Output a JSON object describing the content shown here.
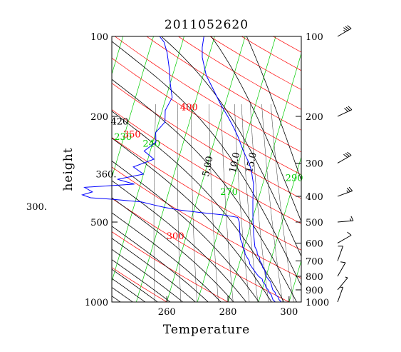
{
  "chart_data": {
    "type": "line",
    "title": "2011052620",
    "xlabel": "Temperature",
    "ylabel": "height",
    "xlim": [
      242,
      304
    ],
    "ylim": [
      1000,
      100
    ],
    "y_scale": "log",
    "x_ticks": [
      "260",
      "280",
      "300"
    ],
    "x_tick_values": [
      260,
      280,
      300
    ],
    "y_ticks": [
      "100",
      "200",
      "500",
      "1000"
    ],
    "y_tick_values": [
      100,
      200,
      500,
      1000
    ],
    "right_axis_ticks": [
      "100",
      "200",
      "300",
      "400",
      "500",
      "600",
      "700",
      "800",
      "900",
      "1000"
    ],
    "right_axis_tick_values": [
      100,
      200,
      300,
      400,
      500,
      600,
      700,
      800,
      900,
      1000
    ],
    "colors": {
      "temperature": "#0000ff",
      "dewpoint": "#0000ff",
      "isotherm": "#00cc00",
      "dry_adiabat": "#ff0000",
      "moist_adiabat": "#000000",
      "mixing_ratio": "#000000",
      "frame": "#000000"
    },
    "isotherm_labels": [
      {
        "text": "230",
        "T": 230,
        "p": 245
      },
      {
        "text": "240",
        "T": 240,
        "p": 260
      },
      {
        "text": "270",
        "T": 270,
        "p": 395
      },
      {
        "text": "290",
        "T": 290,
        "p": 350
      }
    ],
    "dry_adiabat_labels": [
      {
        "text": "300",
        "theta": 300,
        "p": 580
      },
      {
        "text": "350",
        "theta": 350,
        "p": 240
      },
      {
        "text": "400",
        "theta": 400,
        "p": 190
      }
    ],
    "moist_adiabat_labels": [
      {
        "text": "300.",
        "thetae": 300,
        "p": 450
      },
      {
        "text": "360.",
        "thetae": 360,
        "p": 340
      },
      {
        "text": "420",
        "thetae": 420,
        "p": 215
      }
    ],
    "mixing_ratio_labels": [
      {
        "text": "5.00",
        "w": 5,
        "p": 310
      },
      {
        "text": "10.0",
        "w": 10,
        "p": 300
      },
      {
        "text": "15.0",
        "w": 15,
        "p": 300
      }
    ],
    "temperature_profile": [
      {
        "p": 1000,
        "T": 297.5
      },
      {
        "p": 980,
        "T": 296.5
      },
      {
        "p": 960,
        "T": 296
      },
      {
        "p": 940,
        "T": 295
      },
      {
        "p": 920,
        "T": 294.5
      },
      {
        "p": 900,
        "T": 293.5
      },
      {
        "p": 880,
        "T": 293
      },
      {
        "p": 860,
        "T": 292.5
      },
      {
        "p": 840,
        "T": 292
      },
      {
        "p": 820,
        "T": 291
      },
      {
        "p": 800,
        "T": 290
      },
      {
        "p": 780,
        "T": 289.5
      },
      {
        "p": 760,
        "T": 289
      },
      {
        "p": 740,
        "T": 288
      },
      {
        "p": 720,
        "T": 287.5
      },
      {
        "p": 700,
        "T": 286.5
      },
      {
        "p": 680,
        "T": 286
      },
      {
        "p": 660,
        "T": 285
      },
      {
        "p": 640,
        "T": 284.5
      },
      {
        "p": 620,
        "T": 283.5
      },
      {
        "p": 600,
        "T": 283
      },
      {
        "p": 580,
        "T": 282.5
      },
      {
        "p": 560,
        "T": 282
      },
      {
        "p": 540,
        "T": 281.5
      },
      {
        "p": 520,
        "T": 281
      },
      {
        "p": 500,
        "T": 280.5
      },
      {
        "p": 480,
        "T": 280
      },
      {
        "p": 460,
        "T": 279.5
      },
      {
        "p": 440,
        "T": 279
      },
      {
        "p": 420,
        "T": 278.5
      },
      {
        "p": 400,
        "T": 278
      },
      {
        "p": 380,
        "T": 277.5
      },
      {
        "p": 360,
        "T": 277
      },
      {
        "p": 340,
        "T": 276
      },
      {
        "p": 320,
        "T": 275
      },
      {
        "p": 300,
        "T": 273.5
      },
      {
        "p": 280,
        "T": 271.5
      },
      {
        "p": 260,
        "T": 269.5
      },
      {
        "p": 240,
        "T": 267.5
      },
      {
        "p": 220,
        "T": 265
      },
      {
        "p": 200,
        "T": 262
      },
      {
        "p": 180,
        "T": 258.5
      },
      {
        "p": 160,
        "T": 255
      },
      {
        "p": 140,
        "T": 251
      },
      {
        "p": 120,
        "T": 248
      },
      {
        "p": 110,
        "T": 247
      },
      {
        "p": 100,
        "T": 246.5
      }
    ],
    "dewpoint_profile": [
      {
        "p": 1000,
        "T": 295.5
      },
      {
        "p": 980,
        "T": 294.5
      },
      {
        "p": 960,
        "T": 294
      },
      {
        "p": 940,
        "T": 293.5
      },
      {
        "p": 920,
        "T": 292.5
      },
      {
        "p": 900,
        "T": 292
      },
      {
        "p": 880,
        "T": 291
      },
      {
        "p": 860,
        "T": 290.5
      },
      {
        "p": 840,
        "T": 289.5
      },
      {
        "p": 820,
        "T": 289
      },
      {
        "p": 800,
        "T": 287.5
      },
      {
        "p": 780,
        "T": 286.5
      },
      {
        "p": 760,
        "T": 285.5
      },
      {
        "p": 740,
        "T": 284.5
      },
      {
        "p": 720,
        "T": 283.5
      },
      {
        "p": 700,
        "T": 283
      },
      {
        "p": 680,
        "T": 282
      },
      {
        "p": 660,
        "T": 281
      },
      {
        "p": 640,
        "T": 280.5
      },
      {
        "p": 620,
        "T": 279.5
      },
      {
        "p": 600,
        "T": 279
      },
      {
        "p": 580,
        "T": 278
      },
      {
        "p": 560,
        "T": 277.5
      },
      {
        "p": 540,
        "T": 277
      },
      {
        "p": 520,
        "T": 276.5
      },
      {
        "p": 500,
        "T": 276
      },
      {
        "p": 480,
        "T": 275
      },
      {
        "p": 470,
        "T": 270
      },
      {
        "p": 460,
        "T": 262
      },
      {
        "p": 450,
        "T": 255
      },
      {
        "p": 440,
        "T": 250
      },
      {
        "p": 430,
        "T": 246
      },
      {
        "p": 420,
        "T": 242
      },
      {
        "p": 410,
        "T": 232
      },
      {
        "p": 405,
        "T": 225
      },
      {
        "p": 395,
        "T": 222
      },
      {
        "p": 385,
        "T": 225
      },
      {
        "p": 370,
        "T": 222
      },
      {
        "p": 360,
        "T": 238
      },
      {
        "p": 345,
        "T": 232
      },
      {
        "p": 330,
        "T": 240
      },
      {
        "p": 310,
        "T": 236
      },
      {
        "p": 290,
        "T": 242
      },
      {
        "p": 270,
        "T": 238
      },
      {
        "p": 250,
        "T": 241
      },
      {
        "p": 230,
        "T": 240
      },
      {
        "p": 210,
        "T": 242
      },
      {
        "p": 190,
        "T": 241
      },
      {
        "p": 170,
        "T": 242
      },
      {
        "p": 150,
        "T": 240
      },
      {
        "p": 130,
        "T": 238
      },
      {
        "p": 115,
        "T": 236
      },
      {
        "p": 105,
        "T": 234
      },
      {
        "p": 100,
        "T": 232
      }
    ],
    "wind_barbs": [
      {
        "p": 100,
        "dir": 240,
        "speed": 35
      },
      {
        "p": 200,
        "dir": 245,
        "speed": 30
      },
      {
        "p": 300,
        "dir": 240,
        "speed": 30
      },
      {
        "p": 400,
        "dir": 250,
        "speed": 25
      },
      {
        "p": 500,
        "dir": 265,
        "speed": 15
      },
      {
        "p": 600,
        "dir": 240,
        "speed": 10
      },
      {
        "p": 700,
        "dir": 200,
        "speed": 10
      },
      {
        "p": 800,
        "dir": 210,
        "speed": 10
      },
      {
        "p": 900,
        "dir": 220,
        "speed": 8
      },
      {
        "p": 1000,
        "dir": 200,
        "speed": 8
      }
    ]
  }
}
